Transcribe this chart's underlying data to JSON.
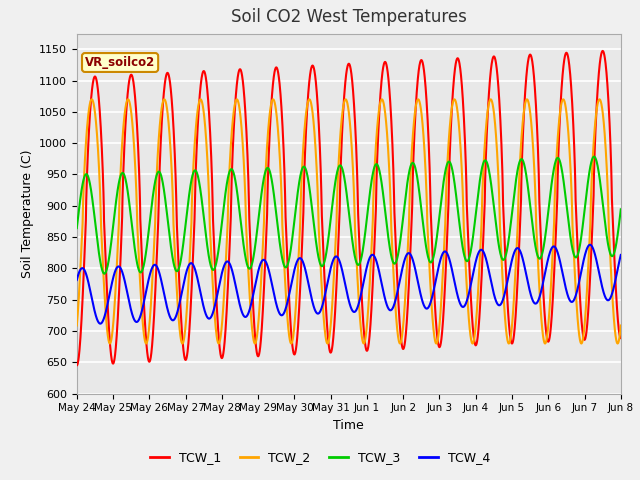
{
  "title": "Soil CO2 West Temperatures",
  "xlabel": "Time",
  "ylabel": "Soil Temperature (C)",
  "ylim": [
    600,
    1175
  ],
  "yticks": [
    600,
    650,
    700,
    750,
    800,
    850,
    900,
    950,
    1000,
    1050,
    1100,
    1150
  ],
  "annotation": "VR_soilco2",
  "TCW_1_color": "#ff0000",
  "TCW_2_color": "#ffa500",
  "TCW_3_color": "#00cc00",
  "TCW_4_color": "#0000ff",
  "linewidth": 1.5,
  "xtick_labels": [
    "May 24",
    "May 25",
    "May 26",
    "May 27",
    "May 28",
    "May 29",
    "May 30",
    "May 31",
    "Jun 1",
    "Jun 2",
    "Jun 3",
    "Jun 4",
    "Jun 5",
    "Jun 6",
    "Jun 7",
    "Jun 8"
  ],
  "background_color": "#e8e8e8",
  "grid_color": "#ffffff",
  "legend_colors": [
    "#ff0000",
    "#ffa500",
    "#00cc00",
    "#0000ff"
  ],
  "legend_labels": [
    "TCW_1",
    "TCW_2",
    "TCW_3",
    "TCW_4"
  ],
  "fig_facecolor": "#f0f0f0"
}
